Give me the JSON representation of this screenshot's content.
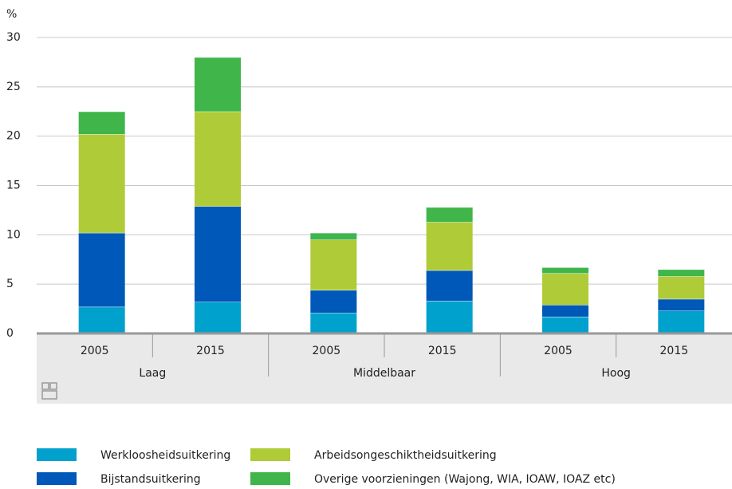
{
  "chart_data": {
    "type": "stacked-bar",
    "y_unit": "%",
    "groups": [
      {
        "label": "Laag",
        "categories": [
          "2005",
          "2015"
        ]
      },
      {
        "label": "Middelbaar",
        "categories": [
          "2005",
          "2015"
        ]
      },
      {
        "label": "Hoog",
        "categories": [
          "2005",
          "2015"
        ]
      }
    ],
    "series": [
      {
        "name": "Werkloosheidsuitkering",
        "color": "#00a1cd",
        "values": [
          2.7,
          3.2,
          2.1,
          3.3,
          1.7,
          2.3
        ]
      },
      {
        "name": "Bijstandsuitkering",
        "color": "#0058b8",
        "values": [
          7.5,
          9.7,
          2.3,
          3.1,
          1.2,
          1.2
        ]
      },
      {
        "name": "Arbeidsongeschiktheidsuitkering",
        "color": "#afcb37",
        "values": [
          10,
          9.6,
          5.1,
          4.9,
          3.2,
          2.3
        ]
      },
      {
        "name": "Overige voorzieningen (Wajong, WIA, IOAW, IOAZ etc)",
        "color": "#3fb54a",
        "values": [
          2.3,
          5.5,
          0.7,
          1.5,
          0.6,
          0.7
        ]
      }
    ],
    "ylim": [
      0,
      30
    ],
    "yticks": [
      0,
      5,
      10,
      15,
      20,
      25,
      30
    ],
    "grid": true
  }
}
